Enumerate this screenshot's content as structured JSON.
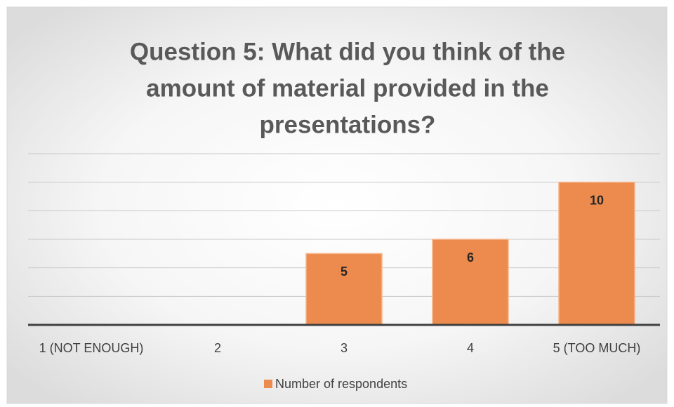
{
  "chart_data": {
    "type": "bar",
    "title": "Question 5: What did you think of the amount of material provided in the presentations?",
    "title_lines": [
      "Question 5: What did you think of the",
      "amount of material provided in the",
      "presentations?"
    ],
    "categories": [
      "1 (NOT ENOUGH)",
      "2",
      "3",
      "4",
      "5 (TOO MUCH)"
    ],
    "series": [
      {
        "name": "Number of respondents",
        "color": "#ed8b4f",
        "values": [
          null,
          null,
          5,
          6,
          10
        ]
      }
    ],
    "ylim": [
      0,
      12
    ],
    "yticks": [
      0,
      2,
      4,
      6,
      8,
      10,
      12
    ],
    "grid": true,
    "legend": "bottom"
  }
}
